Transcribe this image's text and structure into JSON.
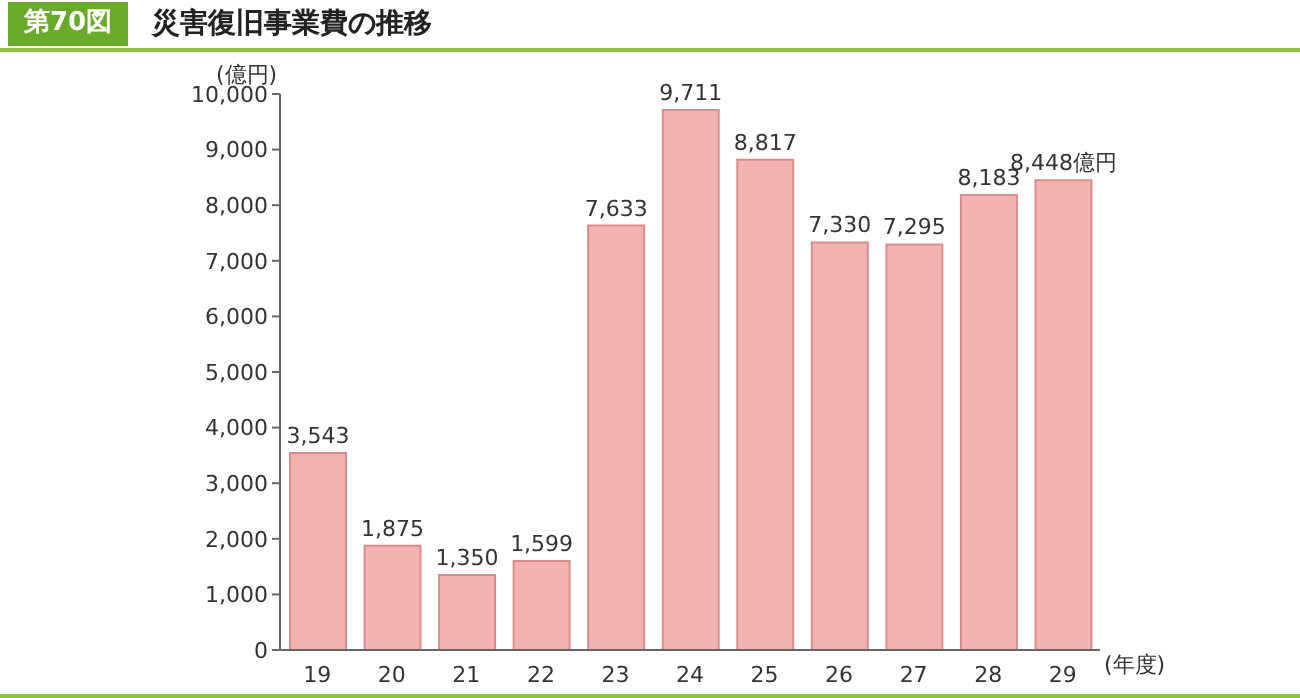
{
  "chart_data": {
    "type": "bar",
    "title": "災害復旧事業費の推移",
    "subtitle": "第70図",
    "ylabel": "(億円)",
    "xlabel": "(年度)",
    "categories": [
      "19",
      "20",
      "21",
      "22",
      "23",
      "24",
      "25",
      "26",
      "27",
      "28",
      "29"
    ],
    "values": [
      3543,
      1875,
      1350,
      1599,
      7633,
      9711,
      8817,
      7330,
      7295,
      8183,
      8448
    ],
    "value_labels": [
      "3,543",
      "1,875",
      "1,350",
      "1,599",
      "7,633",
      "9,711",
      "8,817",
      "7,330",
      "7,295",
      "8,183",
      "8,448億円"
    ],
    "color": "#f4b3b3",
    "ylim": [
      0,
      10000
    ],
    "yticks": [
      0,
      {
        "value": 1000,
        "label": "1,000"
      },
      {
        "value": 2000,
        "label": "2,000"
      },
      {
        "value": 3000,
        "label": "3,000"
      },
      {
        "value": 4000,
        "label": "4,000"
      },
      {
        "value": 5000,
        "label": "5,000"
      },
      {
        "value": 6000,
        "label": "6,000"
      },
      {
        "value": 7000,
        "label": "7,000"
      },
      {
        "value": 8000,
        "label": "8,000"
      },
      {
        "value": 9000,
        "label": "9,000"
      },
      {
        "value": 10000,
        "label": "10,000"
      }
    ]
  }
}
